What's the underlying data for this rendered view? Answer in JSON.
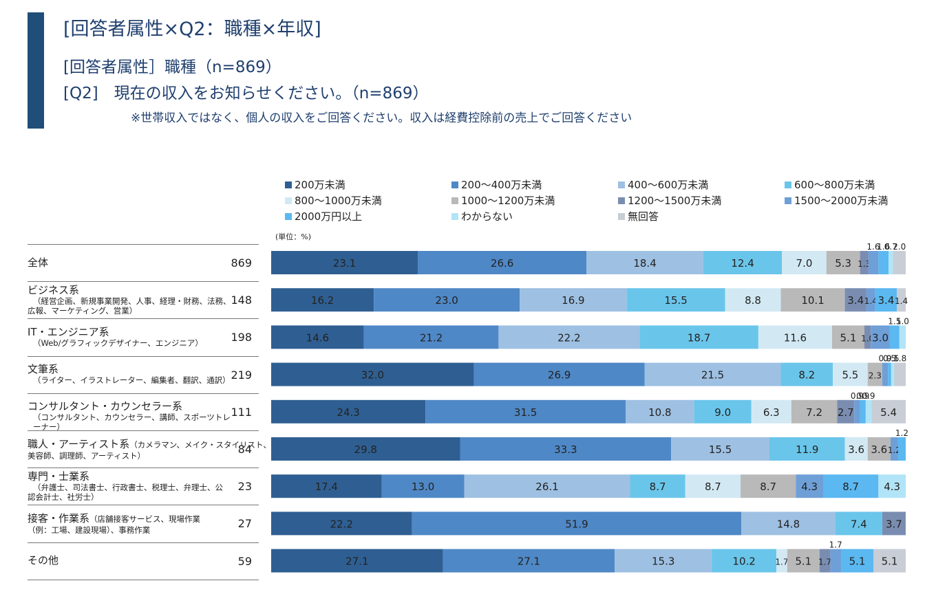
{
  "header": {
    "title": "[回答者属性×Q2：職種×年収]",
    "subtitle1": "[回答者属性］職種（n=869）",
    "subtitle2": "[Q2]　現在の収入をお知らせください。（n=869）",
    "note": "※世帯収入ではなく、個人の収入をご回答ください。収入は経費控除前の売上でご回答ください"
  },
  "unit_label": "(単位：%)",
  "colors": {
    "accent": "#1f4e79",
    "series": [
      "#2f5f92",
      "#4f88c6",
      "#9ec0e2",
      "#6ac5ea",
      "#d2e9f4",
      "#b9b9b9",
      "#7a8db1",
      "#6f9fd7",
      "#5bb8f0",
      "#b2e4f7",
      "#c8cdd6"
    ]
  },
  "rows": [
    {
      "label": "全体",
      "sub": [],
      "n": "869"
    },
    {
      "label": "ビジネス系",
      "sub": [
        "（経営企画、新規事業開発、人事、経理・財務、法務、",
        "広報、マーケティング、営業）"
      ],
      "n": "148"
    },
    {
      "label": "IT・エンジニア系",
      "sub": [
        "（Web/グラフィックデザイナー、エンジニア）"
      ],
      "n": "198"
    },
    {
      "label": "文筆系",
      "sub": [
        "（ライター、イラストレーター、編集者、翻訳、通訳）"
      ],
      "n": "219"
    },
    {
      "label": "コンサルタント・カウンセラー系",
      "sub": [
        "（コンサルタント、カウンセラー、講師、スポーツトレーナー）"
      ],
      "n": "111"
    },
    {
      "label": "職人・アーティスト系",
      "inline": "（カメラマン、メイク・スタイリスト、",
      "sub": [
        "美容師、調理師、アーティスト）"
      ],
      "n": "84"
    },
    {
      "label": "専門・士業系",
      "sub": [
        "（弁護士、司法書士、行政書士、税理士、弁理士、公",
        "認会計士、社労士）"
      ],
      "n": "23"
    },
    {
      "label": "接客・作業系",
      "inline": "（店舗接客サービス、現場作業",
      "sub": [
        "（例：工場、建設現場）、事務作業"
      ],
      "n": "27"
    },
    {
      "label": "その他",
      "sub": [],
      "n": "59"
    }
  ],
  "chart_data": {
    "type": "bar",
    "orientation": "horizontal",
    "stacked": true,
    "unit": "%",
    "categories": [
      "全体",
      "ビジネス系",
      "IT・エンジニア系",
      "文筆系",
      "コンサルタント・カウンセラー系",
      "職人・アーティスト系",
      "専門・士業系",
      "接客・作業系",
      "その他"
    ],
    "series": [
      {
        "name": "200万未満",
        "values": [
          23.1,
          16.2,
          14.6,
          32.0,
          24.3,
          29.8,
          17.4,
          22.2,
          27.1
        ]
      },
      {
        "name": "200～400万未満",
        "values": [
          26.6,
          23.0,
          21.2,
          26.9,
          31.5,
          33.3,
          13.0,
          51.9,
          27.1
        ]
      },
      {
        "name": "400～600万未満",
        "values": [
          18.4,
          16.9,
          22.2,
          21.5,
          10.8,
          15.5,
          26.1,
          14.8,
          15.3
        ]
      },
      {
        "name": "600～800万未満",
        "values": [
          12.4,
          15.5,
          18.7,
          8.2,
          9.0,
          11.9,
          8.7,
          7.4,
          10.2
        ]
      },
      {
        "name": "800～1000万未満",
        "values": [
          7.0,
          8.8,
          11.6,
          5.5,
          6.3,
          3.6,
          8.7,
          0.0,
          1.7
        ]
      },
      {
        "name": "1000～1200万未満",
        "values": [
          5.3,
          10.1,
          5.1,
          2.3,
          7.2,
          3.6,
          8.7,
          0.0,
          5.1
        ]
      },
      {
        "name": "1200～1500万未満",
        "values": [
          1.3,
          3.4,
          1.0,
          0.0,
          2.7,
          0.0,
          0.0,
          3.7,
          1.7
        ]
      },
      {
        "name": "1500～2000万未満",
        "values": [
          1.6,
          1.4,
          3.0,
          0.9,
          0.9,
          1.2,
          4.3,
          0.0,
          1.7
        ]
      },
      {
        "name": "2000万円以上",
        "values": [
          1.6,
          3.4,
          1.5,
          0.5,
          0.9,
          1.2,
          8.7,
          0.0,
          5.1
        ]
      },
      {
        "name": "わからない",
        "values": [
          0.7,
          0.0,
          1.0,
          0.5,
          0.9,
          0.0,
          4.3,
          0.0,
          0.0
        ]
      },
      {
        "name": "無回答",
        "values": [
          2.0,
          1.4,
          0.0,
          1.8,
          5.4,
          0.0,
          0.0,
          0.0,
          5.1
        ]
      }
    ],
    "xlim": [
      0,
      100
    ],
    "legend": "top",
    "data_labels": true
  }
}
